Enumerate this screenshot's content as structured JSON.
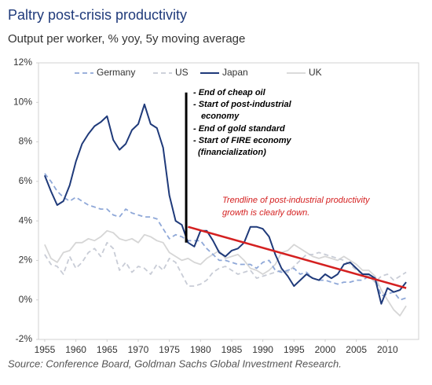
{
  "chart_data": {
    "type": "line",
    "title": "Paltry post-crisis productivity",
    "subtitle": "Output per worker, % yoy, 5y moving average",
    "source": "Source: Conference Board, Goldman Sachs Global Investment Research.",
    "x": [
      1955,
      1956,
      1957,
      1958,
      1959,
      1960,
      1961,
      1962,
      1963,
      1964,
      1965,
      1966,
      1967,
      1968,
      1969,
      1970,
      1971,
      1972,
      1973,
      1974,
      1975,
      1976,
      1977,
      1978,
      1979,
      1980,
      1981,
      1982,
      1983,
      1984,
      1985,
      1986,
      1987,
      1988,
      1989,
      1990,
      1991,
      1992,
      1993,
      1994,
      1995,
      1996,
      1997,
      1998,
      1999,
      2000,
      2001,
      2002,
      2003,
      2004,
      2005,
      2006,
      2007,
      2008,
      2009,
      2010,
      2011,
      2012,
      2013
    ],
    "series": [
      {
        "name": "Germany",
        "color": "#8fa8d8",
        "dash": true,
        "values": [
          6.4,
          6.0,
          5.5,
          5.2,
          5.0,
          5.2,
          5.0,
          4.8,
          4.7,
          4.6,
          4.6,
          4.3,
          4.2,
          4.6,
          4.4,
          4.3,
          4.2,
          4.2,
          4.1,
          3.6,
          3.1,
          3.3,
          3.2,
          3.0,
          3.0,
          3.0,
          2.6,
          2.3,
          2.0,
          2.0,
          1.9,
          1.8,
          1.8,
          1.8,
          1.6,
          1.9,
          2.0,
          1.5,
          1.4,
          1.5,
          1.6,
          1.3,
          1.4,
          1.1,
          1.0,
          1.0,
          0.9,
          0.8,
          0.9,
          0.9,
          1.0,
          1.0,
          1.2,
          1.1,
          0.2,
          0.3,
          0.4,
          0.0,
          0.1
        ]
      },
      {
        "name": "US",
        "color": "#c8ccd6",
        "dash": true,
        "values": [
          2.3,
          1.8,
          1.7,
          1.3,
          2.2,
          1.6,
          1.9,
          2.4,
          2.6,
          2.2,
          2.9,
          2.6,
          1.5,
          1.9,
          1.4,
          1.7,
          1.6,
          1.3,
          1.8,
          1.5,
          2.1,
          1.9,
          1.3,
          0.7,
          0.7,
          0.8,
          1.0,
          1.4,
          1.6,
          1.7,
          1.5,
          1.3,
          1.4,
          1.5,
          1.1,
          1.2,
          1.3,
          1.4,
          1.5,
          1.4,
          1.7,
          2.0,
          2.3,
          2.3,
          2.4,
          2.3,
          2.2,
          2.1,
          2.0,
          1.8,
          1.5,
          1.3,
          1.2,
          0.9,
          1.2,
          1.3,
          1.0,
          1.2,
          1.4
        ]
      },
      {
        "name": "Japan",
        "color": "#1f3a7a",
        "dash": false,
        "values": [
          6.3,
          5.5,
          4.8,
          5.0,
          5.8,
          7.0,
          7.9,
          8.4,
          8.8,
          9.0,
          9.3,
          8.1,
          7.6,
          7.9,
          8.6,
          8.9,
          9.9,
          8.9,
          8.7,
          7.7,
          5.3,
          4.0,
          3.8,
          2.9,
          2.7,
          3.5,
          3.5,
          3.0,
          2.4,
          2.2,
          2.5,
          2.6,
          2.9,
          3.7,
          3.7,
          3.6,
          3.2,
          2.3,
          1.6,
          1.2,
          0.7,
          1.0,
          1.3,
          1.1,
          1.0,
          1.3,
          1.1,
          1.3,
          1.8,
          1.9,
          1.6,
          1.3,
          1.3,
          1.1,
          -0.2,
          0.6,
          0.4,
          0.5,
          0.9
        ]
      },
      {
        "name": "UK",
        "color": "#d6d6d6",
        "dash": false,
        "values": [
          2.8,
          2.1,
          1.9,
          2.4,
          2.5,
          2.9,
          2.9,
          3.1,
          3.0,
          3.2,
          3.5,
          3.4,
          3.1,
          3.0,
          3.1,
          2.9,
          3.3,
          3.2,
          3.0,
          2.9,
          2.4,
          2.2,
          2.0,
          2.1,
          1.9,
          1.8,
          2.1,
          2.3,
          2.5,
          2.1,
          2.2,
          2.3,
          2.0,
          1.6,
          1.5,
          1.3,
          1.5,
          1.8,
          2.4,
          2.5,
          2.8,
          2.6,
          2.4,
          2.2,
          2.1,
          2.2,
          2.1,
          2.0,
          2.2,
          2.0,
          1.8,
          1.5,
          1.5,
          1.2,
          0.5,
          0.0,
          -0.5,
          -0.8,
          -0.3
        ]
      }
    ],
    "xlim": [
      1954,
      2015
    ],
    "ylim": [
      -2,
      12
    ],
    "xticks": [
      1955,
      1960,
      1965,
      1970,
      1975,
      1980,
      1985,
      1990,
      1995,
      2000,
      2005,
      2010
    ],
    "yticks": [
      {
        "value": -2,
        "label": "-2%"
      },
      {
        "value": 0,
        "label": "0%"
      },
      {
        "value": 2,
        "label": "2%"
      },
      {
        "value": 4,
        "label": "4%"
      },
      {
        "value": 6,
        "label": "6%"
      },
      {
        "value": 8,
        "label": "8%"
      },
      {
        "value": 10,
        "label": "10%"
      },
      {
        "value": 12,
        "label": "12%"
      }
    ],
    "legend": "top",
    "grid": false,
    "marker_line": {
      "x": 1977.7,
      "y": [
        2.9,
        10.5
      ],
      "color": "#000000"
    },
    "annotation_lines": [
      "- End of cheap oil",
      "- Start of post-industrial",
      "economy",
      "-  End of gold standard",
      "- Start of FIRE economy",
      "(financialization)"
    ],
    "trendline": {
      "x": [
        1978,
        2013
      ],
      "y": [
        3.7,
        0.6
      ],
      "color": "#d42020"
    },
    "trend_annotation": [
      "Trendline of post-industrial productivity",
      "growth is clearly down."
    ]
  }
}
